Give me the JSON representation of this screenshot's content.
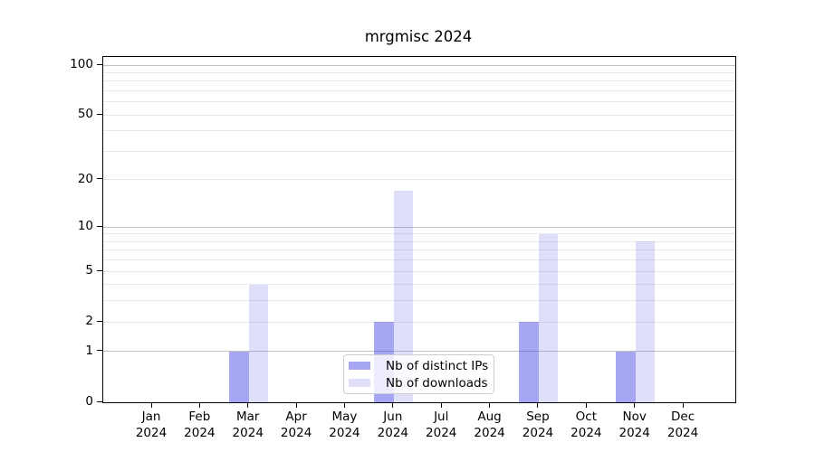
{
  "chart_data": {
    "type": "bar",
    "title": "mrgmisc 2024",
    "categories": [
      "Jan 2024",
      "Feb 2024",
      "Mar 2024",
      "Apr 2024",
      "May 2024",
      "Jun 2024",
      "Jul 2024",
      "Aug 2024",
      "Sep 2024",
      "Oct 2024",
      "Nov 2024",
      "Dec 2024"
    ],
    "series": [
      {
        "name": "Nb of distinct IPs",
        "key": "distinct-ips",
        "color": "rgba(85,85,230,0.52)",
        "values": [
          0,
          0,
          1,
          0,
          0,
          2,
          0,
          0,
          2,
          0,
          1,
          0
        ]
      },
      {
        "name": "Nb of downloads",
        "key": "downloads",
        "color": "rgba(85,85,230,0.19)",
        "values": [
          0,
          0,
          4,
          0,
          0,
          17,
          0,
          0,
          9,
          0,
          8,
          0
        ]
      }
    ],
    "yscale": "log1p",
    "ylim": [
      0,
      112
    ],
    "yticks": [
      0,
      1,
      2,
      5,
      10,
      20,
      50,
      100
    ],
    "gridlines": {
      "major": [
        1,
        10,
        100
      ],
      "minor": [
        2,
        3,
        4,
        5,
        6,
        7,
        8,
        9,
        20,
        30,
        40,
        50,
        60,
        70,
        80,
        90
      ],
      "major_color": "#c2c2c2",
      "minor_color": "#e9e9e9"
    },
    "legend": {
      "position": "lower-center-inside",
      "entries": [
        "Nb of distinct IPs",
        "Nb of downloads"
      ]
    }
  }
}
